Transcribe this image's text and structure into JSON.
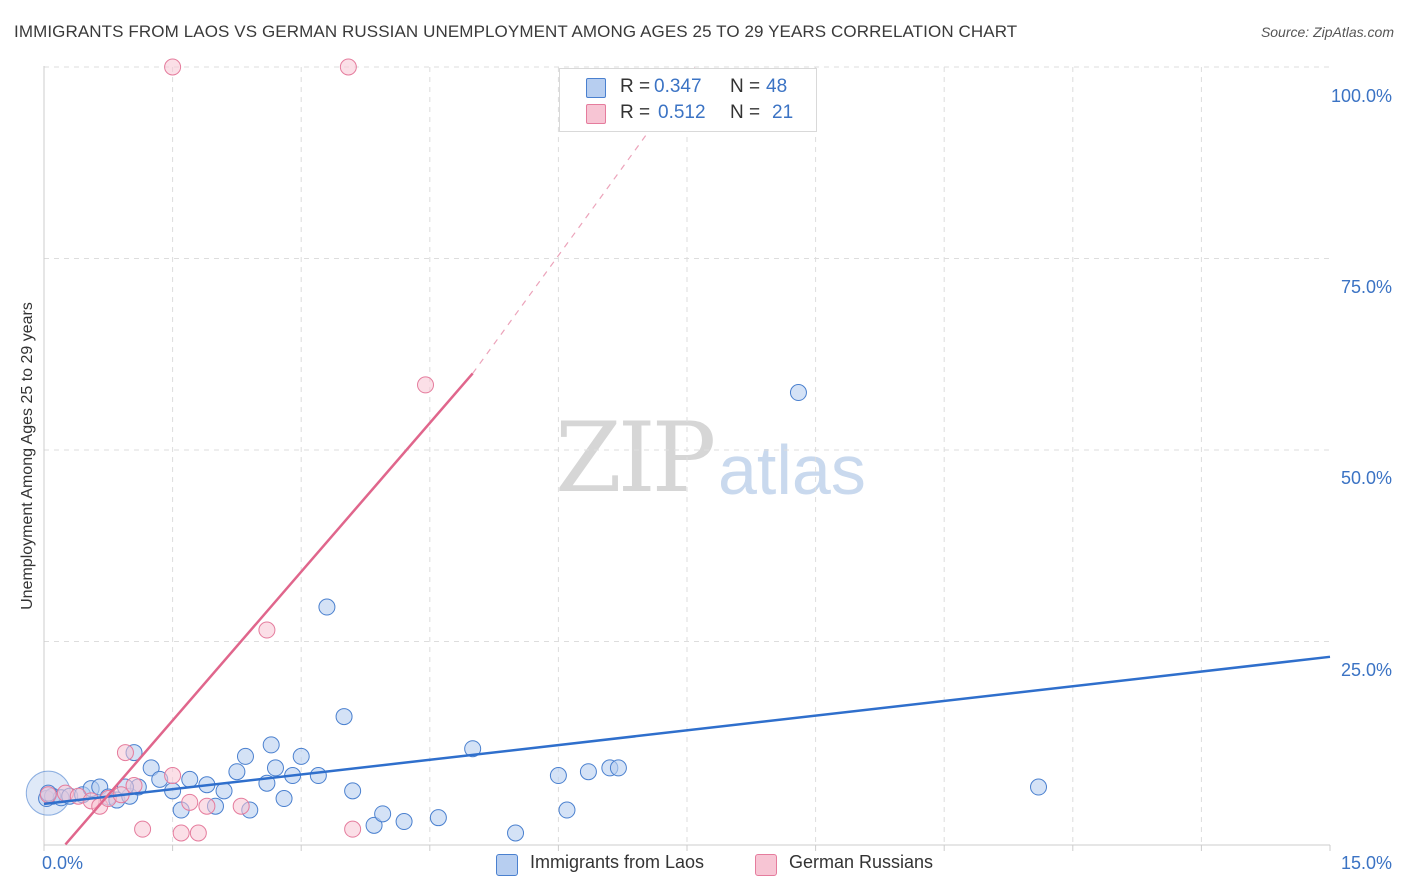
{
  "title": "IMMIGRANTS FROM LAOS VS GERMAN RUSSIAN UNEMPLOYMENT AMONG AGES 25 TO 29 YEARS CORRELATION CHART",
  "source": "Source: ZipAtlas.com",
  "watermark": {
    "zip": "ZIP",
    "atlas": "atlas"
  },
  "legend_top": {
    "r_label": "R =",
    "n_label": "N =",
    "rows": [
      {
        "r": "0.347",
        "n": "48"
      },
      {
        "r": "0.512",
        "n": "21"
      }
    ]
  },
  "legend_bottom": [
    "Immigrants from Laos",
    "German Russians"
  ],
  "colors": {
    "blue_fill": "#b7cef0",
    "blue_stroke": "#4a80cf",
    "blue_line": "#2f6fcc",
    "pink_fill": "#f7c5d4",
    "pink_stroke": "#e57c9d",
    "pink_line": "#e0668c",
    "grid": "#dddddd",
    "tick_text": "#3b73c4"
  },
  "chart_data": {
    "type": "scatter",
    "title": "IMMIGRANTS FROM LAOS VS GERMAN RUSSIAN UNEMPLOYMENT AMONG AGES 25 TO 29 YEARS CORRELATION CHART",
    "xlabel": "",
    "ylabel": "Unemployment Among Ages 25 to 29 years",
    "xlim": [
      0,
      15
    ],
    "ylim": [
      0,
      100
    ],
    "x_tick_labels": [
      "0.0%",
      "15.0%"
    ],
    "y_ticks": [
      25,
      50,
      75,
      100
    ],
    "y_tick_labels": [
      "25.0%",
      "50.0%",
      "75.0%",
      "100.0%"
    ],
    "series": [
      {
        "name": "Immigrants from Laos",
        "color": "#4a80cf",
        "r": 0.347,
        "n": 48,
        "points": [
          [
            0.03,
            4.5
          ],
          [
            0.1,
            4.8
          ],
          [
            0.2,
            4.6
          ],
          [
            0.3,
            4.8
          ],
          [
            0.45,
            5.0
          ],
          [
            0.55,
            5.8
          ],
          [
            0.65,
            6.0
          ],
          [
            0.75,
            4.7
          ],
          [
            0.85,
            4.3
          ],
          [
            1.0,
            4.8
          ],
          [
            1.1,
            6.0
          ],
          [
            1.25,
            8.5
          ],
          [
            1.35,
            7.0
          ],
          [
            1.5,
            5.5
          ],
          [
            1.6,
            3.0
          ],
          [
            1.7,
            7.0
          ],
          [
            1.9,
            6.3
          ],
          [
            2.0,
            3.5
          ],
          [
            2.1,
            5.5
          ],
          [
            2.25,
            8.0
          ],
          [
            2.4,
            3.0
          ],
          [
            2.35,
            10.0
          ],
          [
            2.6,
            6.5
          ],
          [
            2.7,
            8.5
          ],
          [
            2.8,
            4.5
          ],
          [
            2.9,
            7.5
          ],
          [
            3.0,
            10.0
          ],
          [
            3.2,
            7.5
          ],
          [
            3.3,
            29.5
          ],
          [
            3.5,
            15.2
          ],
          [
            3.6,
            5.5
          ],
          [
            3.85,
            1.0
          ],
          [
            3.95,
            2.5
          ],
          [
            4.2,
            1.5
          ],
          [
            4.6,
            2.0
          ],
          [
            5.0,
            11.0
          ],
          [
            5.5,
            0.0
          ],
          [
            6.0,
            7.5
          ],
          [
            6.1,
            3.0
          ],
          [
            6.35,
            8.0
          ],
          [
            6.6,
            8.5
          ],
          [
            6.7,
            8.5
          ],
          [
            8.8,
            57.5
          ],
          [
            11.6,
            6.0
          ],
          [
            2.65,
            11.5
          ],
          [
            1.05,
            10.5
          ],
          [
            0.95,
            6.0
          ],
          [
            0.05,
            5.2
          ]
        ],
        "trend": {
          "x0": 0,
          "y0": 3.8,
          "x1": 15,
          "y1": 23.0
        }
      },
      {
        "name": "German Russians",
        "color": "#e57c9d",
        "r": 0.512,
        "n": 21,
        "points": [
          [
            0.05,
            5.0
          ],
          [
            0.25,
            5.2
          ],
          [
            0.4,
            4.8
          ],
          [
            0.55,
            4.2
          ],
          [
            0.65,
            3.5
          ],
          [
            0.75,
            4.5
          ],
          [
            0.9,
            5.0
          ],
          [
            1.05,
            6.2
          ],
          [
            1.15,
            0.5
          ],
          [
            1.5,
            7.5
          ],
          [
            1.6,
            0.0
          ],
          [
            1.7,
            4.0
          ],
          [
            1.8,
            0.0
          ],
          [
            1.9,
            3.5
          ],
          [
            2.3,
            3.5
          ],
          [
            1.5,
            100.0
          ],
          [
            3.55,
            100.0
          ],
          [
            3.6,
            0.5
          ],
          [
            2.6,
            26.5
          ],
          [
            4.45,
            58.5
          ],
          [
            0.95,
            10.5
          ]
        ],
        "trend": {
          "x0": 0.25,
          "y0": -1.5,
          "x1": 5.0,
          "y1": 60.0
        },
        "trend_dashed": {
          "x0": 5.0,
          "y0": 60.0,
          "x1": 7.6,
          "y1": 100.0
        }
      }
    ]
  }
}
